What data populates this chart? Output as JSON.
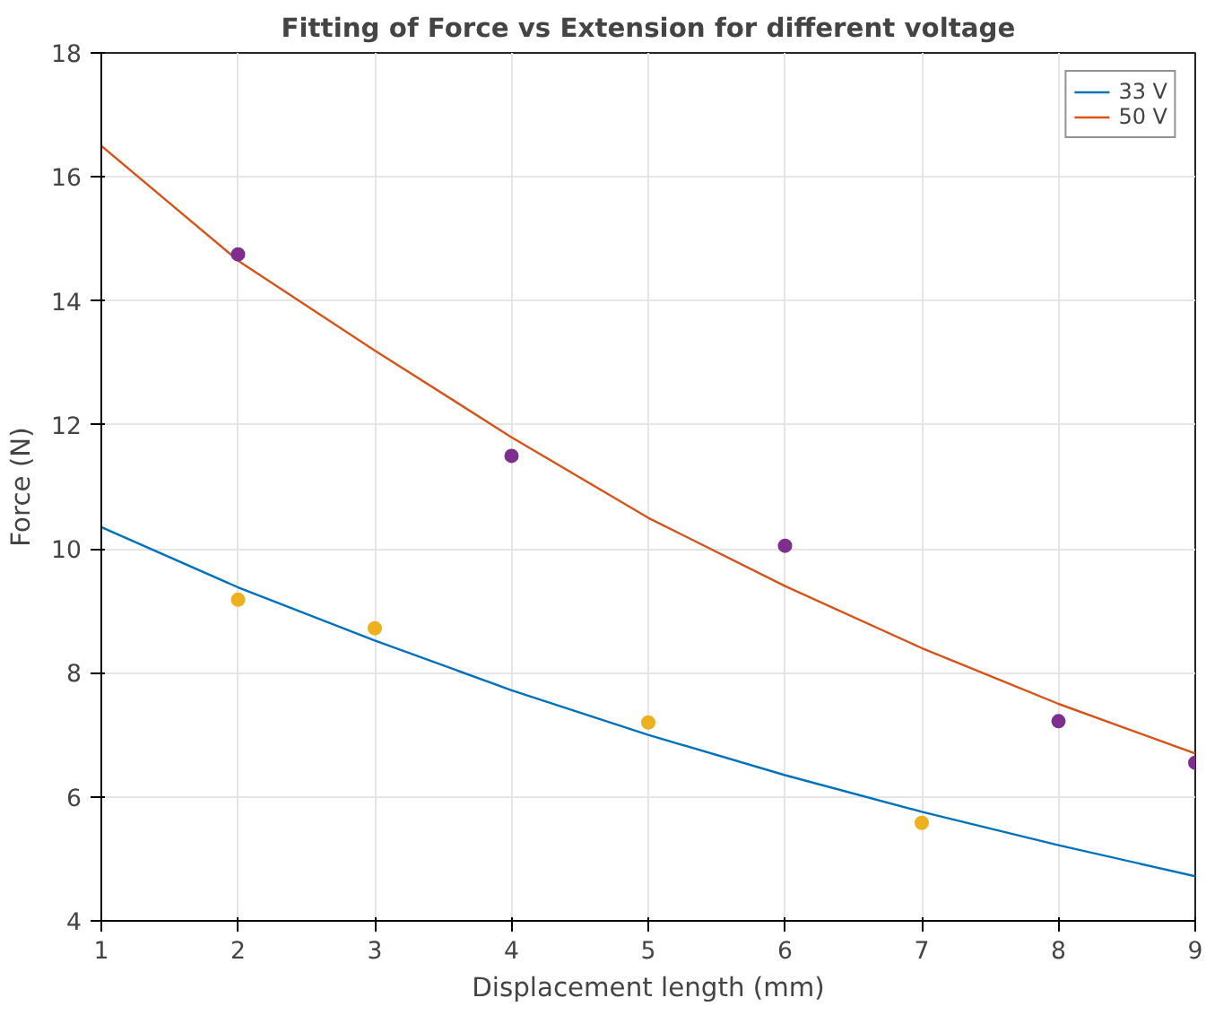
{
  "chart_data": {
    "type": "line",
    "title": "Fitting of Force vs Extension for different voltage",
    "xlabel": "Displacement length (mm)",
    "ylabel": "Force (N)",
    "xlim": [
      1,
      9
    ],
    "ylim": [
      4,
      18
    ],
    "xticks": [
      1,
      2,
      3,
      4,
      5,
      6,
      7,
      8,
      9
    ],
    "yticks": [
      4,
      6,
      8,
      10,
      12,
      14,
      16,
      18
    ],
    "grid": true,
    "legend": "top right",
    "series": [
      {
        "name": "33 V",
        "color": "#0072bd",
        "x": [
          1,
          2,
          3,
          4,
          5,
          6,
          7,
          8,
          9
        ],
        "values": [
          10.35,
          9.38,
          8.52,
          7.72,
          7.0,
          6.35,
          5.76,
          5.22,
          4.72
        ]
      },
      {
        "name": "50 V",
        "color": "#d95319",
        "x": [
          1,
          2,
          3,
          4,
          5,
          6,
          7,
          8,
          9
        ],
        "values": [
          16.5,
          14.65,
          13.2,
          11.8,
          10.5,
          9.4,
          8.4,
          7.5,
          6.7
        ]
      },
      {
        "type": "scatter",
        "marker": "circle",
        "color": "#edb120",
        "x": [
          2,
          3,
          5,
          7
        ],
        "values": [
          9.18,
          8.72,
          7.2,
          5.58
        ]
      },
      {
        "type": "scatter",
        "marker": "circle",
        "color": "#7e2f8e",
        "x": [
          2,
          4,
          6,
          8,
          9
        ],
        "values": [
          14.75,
          11.5,
          10.05,
          7.22,
          6.55
        ]
      }
    ]
  }
}
